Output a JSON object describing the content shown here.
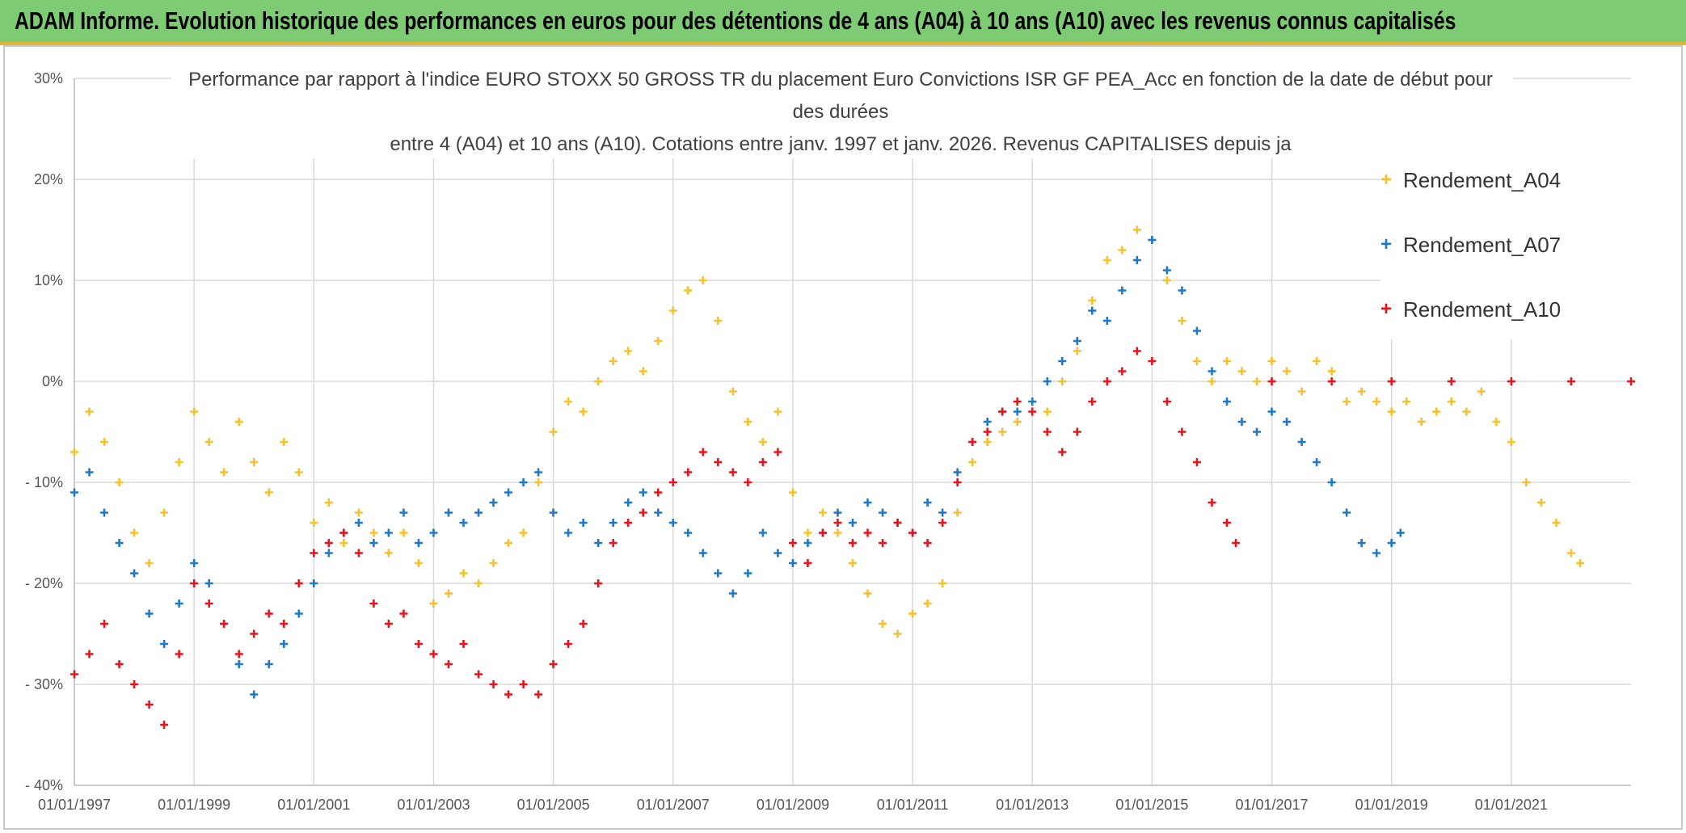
{
  "banner": {
    "title": "ADAM Informe. Evolution historique des performances en euros pour des détentions de 4 ans (A04) à 10 ans (A10) avec les revenus connus capitalisés"
  },
  "chart_data": {
    "type": "scatter",
    "title_lines": [
      "Performance par rapport à l'indice EURO STOXX 50 GROSS TR  du placement Euro Convictions ISR GF PEA_Acc en fonction de la date de début pour",
      "des durées",
      "entre 4 (A04) et 10 ans (A10). Cotations entre janv. 1997 et janv. 2026. Revenus CAPITALISES depuis ja"
    ],
    "xlabel": "",
    "ylabel": "",
    "xlim": [
      1997.0,
      2023.0
    ],
    "ylim": [
      -40,
      30
    ],
    "x_ticks": [
      1997,
      1999,
      2001,
      2003,
      2005,
      2007,
      2009,
      2011,
      2013,
      2015,
      2017,
      2019,
      2021
    ],
    "x_tick_labels": [
      "01/01/1997",
      "01/01/1999",
      "01/01/2001",
      "01/01/2003",
      "01/01/2005",
      "01/01/2007",
      "01/01/2009",
      "01/01/2011",
      "01/01/2013",
      "01/01/2015",
      "01/01/2017",
      "01/01/2019",
      "01/01/2021"
    ],
    "y_ticks": [
      30,
      20,
      10,
      0,
      -10,
      -20,
      -30,
      -40
    ],
    "y_tick_labels": [
      "30%",
      "20%",
      "10%",
      "0%",
      "- 10%",
      "- 20%",
      "- 30%",
      "- 40%"
    ],
    "grid": true,
    "legend_position": "top-right",
    "marker": "+",
    "series": [
      {
        "name": "Rendement_A04",
        "color": "#f5c12e",
        "points": [
          [
            1997.0,
            -7
          ],
          [
            1997.25,
            -3
          ],
          [
            1997.5,
            -6
          ],
          [
            1997.75,
            -10
          ],
          [
            1998.0,
            -15
          ],
          [
            1998.25,
            -18
          ],
          [
            1998.5,
            -13
          ],
          [
            1998.75,
            -8
          ],
          [
            1999.0,
            -3
          ],
          [
            1999.25,
            -6
          ],
          [
            1999.5,
            -9
          ],
          [
            1999.75,
            -4
          ],
          [
            2000.0,
            -8
          ],
          [
            2000.25,
            -11
          ],
          [
            2000.5,
            -6
          ],
          [
            2000.75,
            -9
          ],
          [
            2001.0,
            -14
          ],
          [
            2001.25,
            -12
          ],
          [
            2001.5,
            -16
          ],
          [
            2001.75,
            -13
          ],
          [
            2002.0,
            -15
          ],
          [
            2002.25,
            -17
          ],
          [
            2002.5,
            -15
          ],
          [
            2002.75,
            -18
          ],
          [
            2003.0,
            -22
          ],
          [
            2003.25,
            -21
          ],
          [
            2003.5,
            -19
          ],
          [
            2003.75,
            -20
          ],
          [
            2004.0,
            -18
          ],
          [
            2004.25,
            -16
          ],
          [
            2004.5,
            -15
          ],
          [
            2004.75,
            -10
          ],
          [
            2005.0,
            -5
          ],
          [
            2005.25,
            -2
          ],
          [
            2005.5,
            -3
          ],
          [
            2005.75,
            0
          ],
          [
            2006.0,
            2
          ],
          [
            2006.25,
            3
          ],
          [
            2006.5,
            1
          ],
          [
            2006.75,
            4
          ],
          [
            2007.0,
            7
          ],
          [
            2007.25,
            9
          ],
          [
            2007.5,
            10
          ],
          [
            2007.75,
            6
          ],
          [
            2008.0,
            -1
          ],
          [
            2008.25,
            -4
          ],
          [
            2008.5,
            -6
          ],
          [
            2008.75,
            -3
          ],
          [
            2009.0,
            -11
          ],
          [
            2009.25,
            -15
          ],
          [
            2009.5,
            -13
          ],
          [
            2009.75,
            -15
          ],
          [
            2010.0,
            -18
          ],
          [
            2010.25,
            -21
          ],
          [
            2010.5,
            -24
          ],
          [
            2010.75,
            -25
          ],
          [
            2011.0,
            -23
          ],
          [
            2011.25,
            -22
          ],
          [
            2011.5,
            -20
          ],
          [
            2011.75,
            -13
          ],
          [
            2012.0,
            -8
          ],
          [
            2012.25,
            -6
          ],
          [
            2012.5,
            -5
          ],
          [
            2012.75,
            -4
          ],
          [
            2013.0,
            -2
          ],
          [
            2013.25,
            -3
          ],
          [
            2013.5,
            0
          ],
          [
            2013.75,
            3
          ],
          [
            2014.0,
            8
          ],
          [
            2014.25,
            12
          ],
          [
            2014.5,
            13
          ],
          [
            2014.75,
            15
          ],
          [
            2015.0,
            14
          ],
          [
            2015.25,
            10
          ],
          [
            2015.5,
            6
          ],
          [
            2015.75,
            2
          ],
          [
            2016.0,
            0
          ],
          [
            2016.25,
            2
          ],
          [
            2016.5,
            1
          ],
          [
            2016.75,
            0
          ],
          [
            2017.0,
            2
          ],
          [
            2017.25,
            1
          ],
          [
            2017.5,
            -1
          ],
          [
            2017.75,
            2
          ],
          [
            2018.0,
            1
          ],
          [
            2018.25,
            -2
          ],
          [
            2018.5,
            -1
          ],
          [
            2018.75,
            -2
          ],
          [
            2019.0,
            -3
          ],
          [
            2019.25,
            -2
          ],
          [
            2019.5,
            -4
          ],
          [
            2019.75,
            -3
          ],
          [
            2020.0,
            -2
          ],
          [
            2020.25,
            -3
          ],
          [
            2020.5,
            -1
          ],
          [
            2020.75,
            -4
          ],
          [
            2021.0,
            -6
          ],
          [
            2021.25,
            -10
          ],
          [
            2021.5,
            -12
          ],
          [
            2021.75,
            -14
          ],
          [
            2022.0,
            -17
          ],
          [
            2022.15,
            -18
          ]
        ]
      },
      {
        "name": "Rendement_A07",
        "color": "#1f78c8",
        "points": [
          [
            1997.0,
            -11
          ],
          [
            1997.25,
            -9
          ],
          [
            1997.5,
            -13
          ],
          [
            1997.75,
            -16
          ],
          [
            1998.0,
            -19
          ],
          [
            1998.25,
            -23
          ],
          [
            1998.5,
            -26
          ],
          [
            1998.75,
            -22
          ],
          [
            1999.0,
            -18
          ],
          [
            1999.25,
            -20
          ],
          [
            1999.5,
            -24
          ],
          [
            1999.75,
            -28
          ],
          [
            2000.0,
            -31
          ],
          [
            2000.25,
            -28
          ],
          [
            2000.5,
            -26
          ],
          [
            2000.75,
            -23
          ],
          [
            2001.0,
            -20
          ],
          [
            2001.25,
            -17
          ],
          [
            2001.5,
            -15
          ],
          [
            2001.75,
            -14
          ],
          [
            2002.0,
            -16
          ],
          [
            2002.25,
            -15
          ],
          [
            2002.5,
            -13
          ],
          [
            2002.75,
            -16
          ],
          [
            2003.0,
            -15
          ],
          [
            2003.25,
            -13
          ],
          [
            2003.5,
            -14
          ],
          [
            2003.75,
            -13
          ],
          [
            2004.0,
            -12
          ],
          [
            2004.25,
            -11
          ],
          [
            2004.5,
            -10
          ],
          [
            2004.75,
            -9
          ],
          [
            2005.0,
            -13
          ],
          [
            2005.25,
            -15
          ],
          [
            2005.5,
            -14
          ],
          [
            2005.75,
            -16
          ],
          [
            2006.0,
            -14
          ],
          [
            2006.25,
            -12
          ],
          [
            2006.5,
            -11
          ],
          [
            2006.75,
            -13
          ],
          [
            2007.0,
            -14
          ],
          [
            2007.25,
            -15
          ],
          [
            2007.5,
            -17
          ],
          [
            2007.75,
            -19
          ],
          [
            2008.0,
            -21
          ],
          [
            2008.25,
            -19
          ],
          [
            2008.5,
            -15
          ],
          [
            2008.75,
            -17
          ],
          [
            2009.0,
            -18
          ],
          [
            2009.25,
            -16
          ],
          [
            2009.5,
            -15
          ],
          [
            2009.75,
            -13
          ],
          [
            2010.0,
            -14
          ],
          [
            2010.25,
            -12
          ],
          [
            2010.5,
            -13
          ],
          [
            2010.75,
            -14
          ],
          [
            2011.0,
            -15
          ],
          [
            2011.25,
            -12
          ],
          [
            2011.5,
            -13
          ],
          [
            2011.75,
            -9
          ],
          [
            2012.0,
            -6
          ],
          [
            2012.25,
            -4
          ],
          [
            2012.5,
            -3
          ],
          [
            2012.75,
            -3
          ],
          [
            2013.0,
            -2
          ],
          [
            2013.25,
            0
          ],
          [
            2013.5,
            2
          ],
          [
            2013.75,
            4
          ],
          [
            2014.0,
            7
          ],
          [
            2014.25,
            6
          ],
          [
            2014.5,
            9
          ],
          [
            2014.75,
            12
          ],
          [
            2015.0,
            14
          ],
          [
            2015.25,
            11
          ],
          [
            2015.5,
            9
          ],
          [
            2015.75,
            5
          ],
          [
            2016.0,
            1
          ],
          [
            2016.25,
            -2
          ],
          [
            2016.5,
            -4
          ],
          [
            2016.75,
            -5
          ],
          [
            2017.0,
            -3
          ],
          [
            2017.25,
            -4
          ],
          [
            2017.5,
            -6
          ],
          [
            2017.75,
            -8
          ],
          [
            2018.0,
            -10
          ],
          [
            2018.25,
            -13
          ],
          [
            2018.5,
            -16
          ],
          [
            2018.75,
            -17
          ],
          [
            2019.0,
            -16
          ],
          [
            2019.15,
            -15
          ]
        ]
      },
      {
        "name": "Rendement_A10",
        "color": "#e8141c",
        "points": [
          [
            1997.0,
            -29
          ],
          [
            1997.25,
            -27
          ],
          [
            1997.5,
            -24
          ],
          [
            1997.75,
            -28
          ],
          [
            1998.0,
            -30
          ],
          [
            1998.25,
            -32
          ],
          [
            1998.5,
            -34
          ],
          [
            1998.75,
            -27
          ],
          [
            1999.0,
            -20
          ],
          [
            1999.25,
            -22
          ],
          [
            1999.5,
            -24
          ],
          [
            1999.75,
            -27
          ],
          [
            2000.0,
            -25
          ],
          [
            2000.25,
            -23
          ],
          [
            2000.5,
            -24
          ],
          [
            2000.75,
            -20
          ],
          [
            2001.0,
            -17
          ],
          [
            2001.25,
            -16
          ],
          [
            2001.5,
            -15
          ],
          [
            2001.75,
            -17
          ],
          [
            2002.0,
            -22
          ],
          [
            2002.25,
            -24
          ],
          [
            2002.5,
            -23
          ],
          [
            2002.75,
            -26
          ],
          [
            2003.0,
            -27
          ],
          [
            2003.25,
            -28
          ],
          [
            2003.5,
            -26
          ],
          [
            2003.75,
            -29
          ],
          [
            2004.0,
            -30
          ],
          [
            2004.25,
            -31
          ],
          [
            2004.5,
            -30
          ],
          [
            2004.75,
            -31
          ],
          [
            2005.0,
            -28
          ],
          [
            2005.25,
            -26
          ],
          [
            2005.5,
            -24
          ],
          [
            2005.75,
            -20
          ],
          [
            2006.0,
            -16
          ],
          [
            2006.25,
            -14
          ],
          [
            2006.5,
            -13
          ],
          [
            2006.75,
            -11
          ],
          [
            2007.0,
            -10
          ],
          [
            2007.25,
            -9
          ],
          [
            2007.5,
            -7
          ],
          [
            2007.75,
            -8
          ],
          [
            2008.0,
            -9
          ],
          [
            2008.25,
            -10
          ],
          [
            2008.5,
            -8
          ],
          [
            2008.75,
            -7
          ],
          [
            2009.0,
            -16
          ],
          [
            2009.25,
            -18
          ],
          [
            2009.5,
            -15
          ],
          [
            2009.75,
            -14
          ],
          [
            2010.0,
            -16
          ],
          [
            2010.25,
            -15
          ],
          [
            2010.5,
            -16
          ],
          [
            2010.75,
            -14
          ],
          [
            2011.0,
            -15
          ],
          [
            2011.25,
            -16
          ],
          [
            2011.5,
            -14
          ],
          [
            2011.75,
            -10
          ],
          [
            2012.0,
            -6
          ],
          [
            2012.25,
            -5
          ],
          [
            2012.5,
            -3
          ],
          [
            2012.75,
            -2
          ],
          [
            2013.0,
            -3
          ],
          [
            2013.25,
            -5
          ],
          [
            2013.5,
            -7
          ],
          [
            2013.75,
            -5
          ],
          [
            2014.0,
            -2
          ],
          [
            2014.25,
            0
          ],
          [
            2014.5,
            1
          ],
          [
            2014.75,
            3
          ],
          [
            2015.0,
            2
          ],
          [
            2015.25,
            -2
          ],
          [
            2015.5,
            -5
          ],
          [
            2015.75,
            -8
          ],
          [
            2016.0,
            -12
          ],
          [
            2016.25,
            -14
          ],
          [
            2016.4,
            -16
          ],
          [
            2017.0,
            0
          ],
          [
            2018.0,
            0
          ],
          [
            2019.0,
            0
          ],
          [
            2020.0,
            0
          ],
          [
            2021.0,
            0
          ],
          [
            2022.0,
            0
          ],
          [
            2023.0,
            0
          ]
        ]
      }
    ]
  }
}
